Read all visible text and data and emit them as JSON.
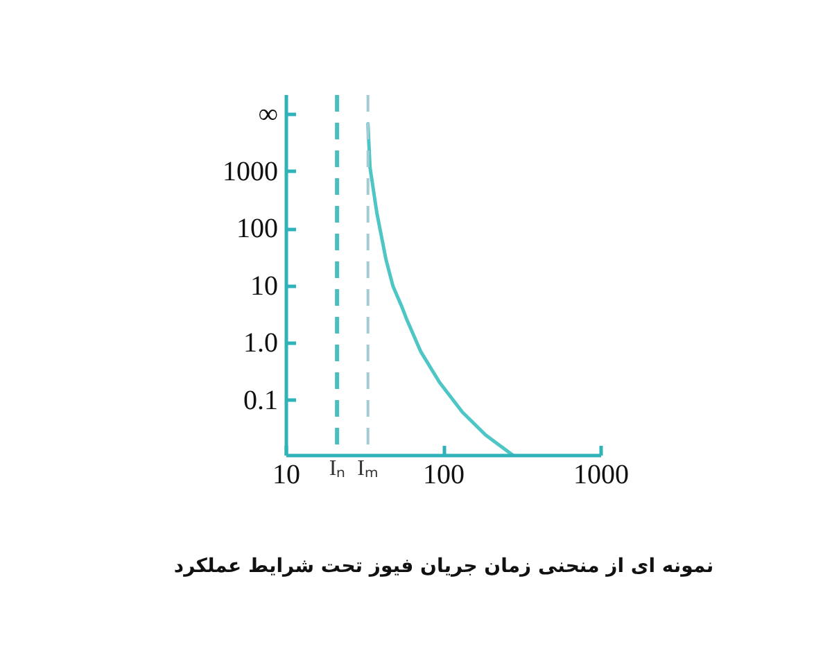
{
  "chart_data": {
    "type": "line",
    "log": "xy",
    "x": [
      33,
      34,
      37.6,
      43,
      47.6,
      53.8,
      58.3,
      71.5,
      93.9,
      131.5,
      184.8,
      277
    ],
    "series": [
      {
        "color": "#4fc6c6",
        "values": [
          6900,
          1200,
          190,
          29,
          10,
          4.6,
          2.6,
          0.72,
          0.21,
          0.063,
          0.025,
          0.011
        ]
      }
    ],
    "xlim": [
      10,
      1000
    ],
    "ylim": [
      0.011,
      22000
    ],
    "xticks": [
      10,
      100,
      1000
    ],
    "yticks": [
      0.1,
      {
        "value": 1,
        "label": "1.0"
      },
      10,
      100,
      1000,
      {
        "value": 10000,
        "label": "∞"
      }
    ],
    "ref_lines": [
      {
        "axis": "x",
        "value": 21,
        "label": "Iₙ",
        "color": "#4bbfbf",
        "line_style": "dashed"
      },
      {
        "axis": "x",
        "value": 33,
        "label": "Iₘ",
        "color": "#a3cbd3",
        "line_style": "dashed"
      }
    ],
    "annotations": [
      "نمونه ای از منحنی زمان جریان فیوز تحت شرایط عملکرد"
    ],
    "line_style": "solid"
  }
}
